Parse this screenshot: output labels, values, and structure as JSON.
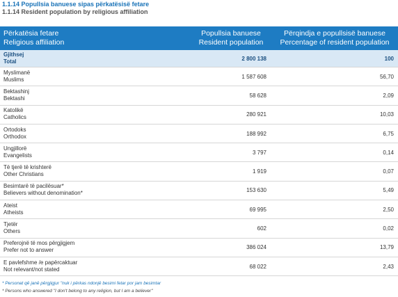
{
  "header": {
    "title_sq": "1.1.14 Popullsia banuese sipas përkatësisë fetare",
    "title_en": "1.1.14 Resident population by religious affiliation"
  },
  "table": {
    "columns": [
      [
        "Përkatësia fetare",
        "Religious affiliation"
      ],
      [
        "Popullsia banuese",
        "Resident population"
      ],
      [
        "Përqindja e popullsisë banuese",
        "Percentage of resident population"
      ]
    ],
    "total": [
      "Gjithsej",
      "Total",
      "2 800 138",
      "100"
    ],
    "rows": [
      [
        "Myslimanë",
        "Muslims",
        "1 587 608",
        "56,70"
      ],
      [
        "Bektashinj",
        "Bektashi",
        "58 628",
        "2,09"
      ],
      [
        "Katolikë",
        "Catholics",
        "280 921",
        "10,03"
      ],
      [
        "Ortodoks",
        "Orthodox",
        "188 992",
        "6,75"
      ],
      [
        "Ungjillorë",
        "Evangelists",
        "3 797",
        "0,14"
      ],
      [
        "Të tjerë të krishterë",
        "Other Christians",
        "1 919",
        "0,07"
      ],
      [
        "Besimtarë të pacilësuar*",
        "Believers without denomination*",
        "153 630",
        "5,49"
      ],
      [
        "Ateist",
        "Atheists",
        "69 995",
        "2,50"
      ],
      [
        "Tjetër",
        "Others",
        "602",
        "0,02"
      ],
      [
        "Preferojnë të mos përgjigjem",
        "Prefer not to answer",
        "386 024",
        "13,79"
      ],
      [
        "E pavlefshme /e papërcaktuar",
        "Not relevant/not stated",
        "68 022",
        "2,43"
      ]
    ]
  },
  "footnotes": [
    "* Personat që janë përgjigjur \"nuk i përkas ndonjë besimi fetar por jam besimtar",
    "* Persons who answered \"I don't belong to any religion, but I am a believer\""
  ]
}
